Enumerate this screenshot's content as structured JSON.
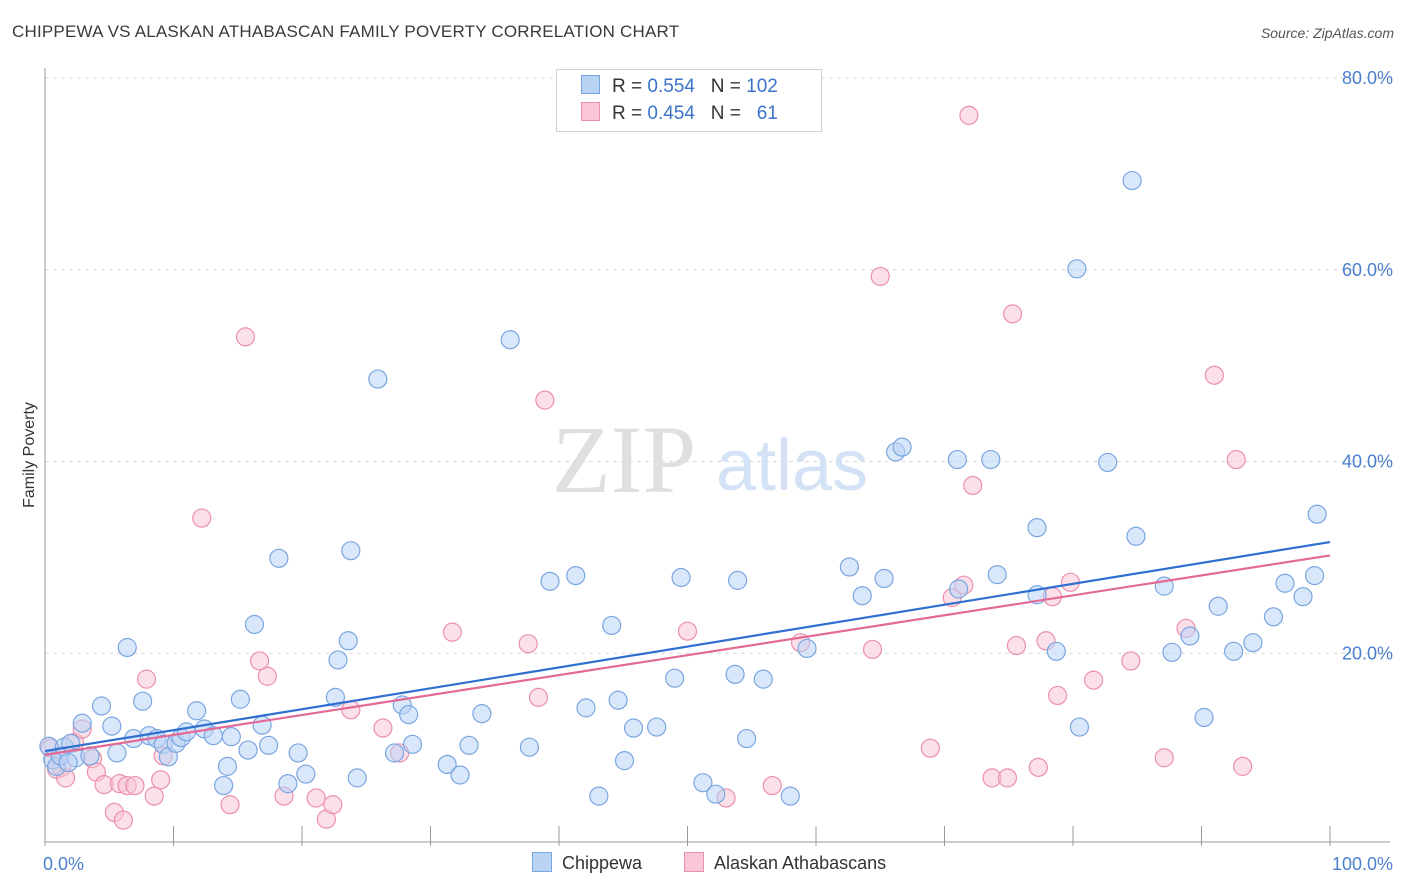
{
  "title": "CHIPPEWA VS ALASKAN ATHABASCAN FAMILY POVERTY CORRELATION CHART",
  "source": "Source: ZipAtlas.com",
  "watermark": {
    "zip": "ZIP",
    "atlas": "atlas"
  },
  "legend": {
    "r_label": "R =",
    "n_label": "N =",
    "rows": [
      {
        "r": "0.554",
        "n": "102"
      },
      {
        "r": "0.454",
        "n": "61"
      }
    ]
  },
  "colors": {
    "chippewa_fill": "#b9d3f5",
    "chippewa_stroke": "#7aa6e0",
    "chippewa_line": "#2f6fd0",
    "athabascan_fill": "#f8c6d6",
    "athabascan_stroke": "#ec8fae",
    "athabascan_line": "#e46a96",
    "tick_text": "#4a7fcf",
    "grid": "#d9d9d9"
  },
  "chart_data": {
    "type": "scatter",
    "title": "CHIPPEWA VS ALASKAN ATHABASCAN FAMILY POVERTY CORRELATION CHART",
    "xlabel": "",
    "ylabel": "Family Poverty",
    "xlim": [
      0,
      100
    ],
    "ylim": [
      0,
      80
    ],
    "x_tick_labels": [
      "0.0%",
      "100.0%"
    ],
    "y_ticks": [
      20,
      40,
      60,
      80
    ],
    "y_tick_labels": [
      "20.0%",
      "40.0%",
      "60.0%",
      "80.0%"
    ],
    "grid": true,
    "legend_position": "top-center",
    "series": [
      {
        "name": "Chippewa",
        "trend": [
          [
            0,
            9.8
          ],
          [
            100,
            31.6
          ]
        ],
        "points": [
          [
            0.3,
            10.3
          ],
          [
            0.6,
            8.9
          ],
          [
            0.9,
            8.2
          ],
          [
            1.2,
            9.3
          ],
          [
            1.5,
            10.2
          ],
          [
            2.0,
            10.6
          ],
          [
            2.4,
            9.1
          ],
          [
            2.9,
            12.7
          ],
          [
            3.5,
            9.3
          ],
          [
            4.4,
            14.5
          ],
          [
            5.2,
            12.4
          ],
          [
            5.6,
            9.6
          ],
          [
            6.4,
            20.6
          ],
          [
            6.9,
            11.1
          ],
          [
            7.6,
            15.0
          ],
          [
            8.1,
            11.4
          ],
          [
            8.7,
            11.1
          ],
          [
            9.2,
            10.5
          ],
          [
            9.6,
            9.2
          ],
          [
            10.2,
            10.6
          ],
          [
            10.6,
            11.2
          ],
          [
            11.0,
            11.8
          ],
          [
            11.8,
            14.0
          ],
          [
            12.4,
            12.1
          ],
          [
            13.1,
            11.4
          ],
          [
            13.9,
            6.2
          ],
          [
            14.2,
            8.2
          ],
          [
            14.5,
            11.3
          ],
          [
            15.2,
            15.2
          ],
          [
            15.8,
            9.9
          ],
          [
            16.3,
            23.0
          ],
          [
            16.9,
            12.5
          ],
          [
            17.4,
            10.4
          ],
          [
            18.2,
            29.9
          ],
          [
            18.9,
            6.4
          ],
          [
            19.7,
            9.6
          ],
          [
            20.3,
            7.4
          ],
          [
            22.6,
            15.4
          ],
          [
            22.8,
            19.3
          ],
          [
            23.6,
            21.3
          ],
          [
            23.8,
            30.7
          ],
          [
            24.3,
            7.0
          ],
          [
            25.9,
            48.6
          ],
          [
            27.2,
            9.6
          ],
          [
            27.8,
            14.6
          ],
          [
            28.3,
            13.6
          ],
          [
            28.6,
            10.5
          ],
          [
            31.3,
            8.4
          ],
          [
            32.3,
            7.3
          ],
          [
            33.0,
            10.4
          ],
          [
            34.0,
            13.7
          ],
          [
            36.2,
            52.7
          ],
          [
            37.7,
            10.2
          ],
          [
            39.3,
            27.5
          ],
          [
            41.3,
            28.1
          ],
          [
            42.1,
            14.3
          ],
          [
            43.1,
            5.1
          ],
          [
            44.1,
            22.9
          ],
          [
            44.6,
            15.1
          ],
          [
            45.1,
            8.8
          ],
          [
            45.8,
            12.2
          ],
          [
            47.6,
            12.3
          ],
          [
            49.0,
            17.4
          ],
          [
            49.5,
            27.9
          ],
          [
            51.2,
            6.5
          ],
          [
            52.2,
            5.3
          ],
          [
            53.7,
            17.8
          ],
          [
            53.9,
            27.6
          ],
          [
            54.6,
            11.1
          ],
          [
            55.9,
            17.3
          ],
          [
            58.0,
            5.1
          ],
          [
            59.3,
            20.5
          ],
          [
            62.6,
            29.0
          ],
          [
            63.6,
            26.0
          ],
          [
            65.3,
            27.8
          ],
          [
            66.2,
            41.0
          ],
          [
            66.7,
            41.5
          ],
          [
            71.0,
            40.2
          ],
          [
            71.1,
            26.7
          ],
          [
            73.6,
            40.2
          ],
          [
            74.1,
            28.2
          ],
          [
            77.2,
            33.1
          ],
          [
            77.2,
            26.1
          ],
          [
            78.7,
            20.2
          ],
          [
            80.3,
            60.1
          ],
          [
            80.5,
            12.3
          ],
          [
            82.7,
            39.9
          ],
          [
            84.6,
            69.3
          ],
          [
            84.9,
            32.2
          ],
          [
            87.1,
            27.0
          ],
          [
            87.7,
            20.1
          ],
          [
            89.1,
            21.8
          ],
          [
            90.2,
            13.3
          ],
          [
            91.3,
            24.9
          ],
          [
            92.5,
            20.2
          ],
          [
            94.0,
            21.1
          ],
          [
            95.6,
            23.8
          ],
          [
            96.5,
            27.3
          ],
          [
            97.9,
            25.9
          ],
          [
            98.8,
            28.1
          ],
          [
            99.0,
            34.5
          ],
          [
            1.8,
            8.6
          ]
        ]
      },
      {
        "name": "Alaskan Athabascans",
        "trend": [
          [
            0,
            9.4
          ],
          [
            100,
            30.2
          ]
        ],
        "points": [
          [
            0.4,
            10.1
          ],
          [
            0.9,
            7.9
          ],
          [
            1.3,
            8.1
          ],
          [
            1.6,
            7.0
          ],
          [
            2.3,
            10.7
          ],
          [
            2.9,
            12.1
          ],
          [
            3.7,
            9.0
          ],
          [
            4.0,
            7.6
          ],
          [
            4.6,
            6.3
          ],
          [
            5.4,
            3.4
          ],
          [
            5.8,
            6.4
          ],
          [
            6.1,
            2.6
          ],
          [
            6.4,
            6.2
          ],
          [
            7.0,
            6.2
          ],
          [
            7.9,
            17.3
          ],
          [
            8.5,
            5.1
          ],
          [
            9.0,
            6.8
          ],
          [
            9.2,
            9.3
          ],
          [
            12.2,
            34.1
          ],
          [
            14.4,
            4.2
          ],
          [
            15.6,
            53.0
          ],
          [
            16.7,
            19.2
          ],
          [
            17.3,
            17.6
          ],
          [
            18.6,
            5.1
          ],
          [
            21.1,
            4.9
          ],
          [
            21.9,
            2.7
          ],
          [
            22.4,
            4.2
          ],
          [
            23.8,
            14.1
          ],
          [
            26.3,
            12.2
          ],
          [
            27.6,
            9.6
          ],
          [
            31.7,
            22.2
          ],
          [
            37.6,
            21.0
          ],
          [
            38.4,
            15.4
          ],
          [
            38.9,
            46.4
          ],
          [
            50.0,
            22.3
          ],
          [
            53.0,
            4.9
          ],
          [
            56.6,
            6.2
          ],
          [
            58.8,
            21.1
          ],
          [
            64.4,
            20.4
          ],
          [
            65.0,
            59.3
          ],
          [
            68.9,
            10.1
          ],
          [
            70.6,
            25.8
          ],
          [
            71.5,
            27.1
          ],
          [
            71.9,
            76.1
          ],
          [
            72.2,
            37.5
          ],
          [
            73.7,
            7.0
          ],
          [
            74.9,
            7.0
          ],
          [
            75.3,
            55.4
          ],
          [
            75.6,
            20.8
          ],
          [
            77.3,
            8.1
          ],
          [
            77.9,
            21.3
          ],
          [
            78.4,
            25.9
          ],
          [
            78.8,
            15.6
          ],
          [
            79.8,
            27.4
          ],
          [
            81.6,
            17.2
          ],
          [
            84.5,
            19.2
          ],
          [
            87.1,
            9.1
          ],
          [
            88.8,
            22.6
          ],
          [
            91.0,
            49.0
          ],
          [
            92.7,
            40.2
          ],
          [
            93.2,
            8.2
          ]
        ]
      }
    ]
  },
  "bottom_legend": [
    "Chippewa",
    "Alaskan Athabascans"
  ]
}
